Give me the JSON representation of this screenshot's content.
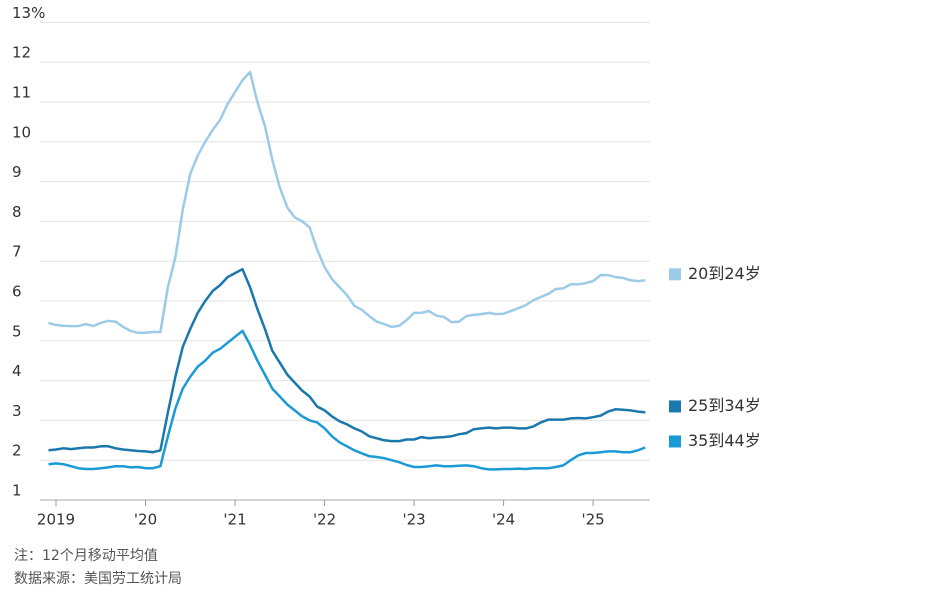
{
  "chart_data": {
    "type": "line",
    "note": "注：12个月移动平均值",
    "source": "数据来源：美国劳工统计局",
    "x": [
      "2018-12",
      "2019-01",
      "2019-02",
      "2019-03",
      "2019-04",
      "2019-05",
      "2019-06",
      "2019-07",
      "2019-08",
      "2019-09",
      "2019-10",
      "2019-11",
      "2019-12",
      "2020-01",
      "2020-02",
      "2020-03",
      "2020-04",
      "2020-05",
      "2020-06",
      "2020-07",
      "2020-08",
      "2020-09",
      "2020-10",
      "2020-11",
      "2020-12",
      "2021-01",
      "2021-02",
      "2021-03",
      "2021-04",
      "2021-05",
      "2021-06",
      "2021-07",
      "2021-08",
      "2021-09",
      "2021-10",
      "2021-11",
      "2021-12",
      "2022-01",
      "2022-02",
      "2022-03",
      "2022-04",
      "2022-05",
      "2022-06",
      "2022-07",
      "2022-08",
      "2022-09",
      "2022-10",
      "2022-11",
      "2022-12",
      "2023-01",
      "2023-02",
      "2023-03",
      "2023-04",
      "2023-05",
      "2023-06",
      "2023-07",
      "2023-08",
      "2023-09",
      "2023-10",
      "2023-11",
      "2023-12",
      "2024-01",
      "2024-02",
      "2024-03",
      "2024-04",
      "2024-05",
      "2024-06",
      "2024-07",
      "2024-08",
      "2024-09",
      "2024-10",
      "2024-11",
      "2024-12",
      "2025-01",
      "2025-02",
      "2025-03",
      "2025-04",
      "2025-05",
      "2025-06",
      "2025-07",
      "2025-08"
    ],
    "series": [
      {
        "name": "20到24岁",
        "color": "#9ccbe8",
        "values": [
          5.45,
          5.4,
          5.38,
          5.37,
          5.37,
          5.42,
          5.37,
          5.45,
          5.5,
          5.48,
          5.35,
          5.25,
          5.2,
          5.2,
          5.22,
          5.22,
          6.35,
          7.1,
          8.3,
          9.2,
          9.65,
          10.0,
          10.3,
          10.55,
          10.95,
          11.25,
          11.55,
          11.75,
          11.0,
          10.4,
          9.55,
          8.85,
          8.35,
          8.1,
          8.0,
          7.85,
          7.3,
          6.85,
          6.55,
          6.35,
          6.15,
          5.88,
          5.78,
          5.62,
          5.48,
          5.42,
          5.35,
          5.38,
          5.52,
          5.7,
          5.7,
          5.75,
          5.63,
          5.6,
          5.47,
          5.48,
          5.62,
          5.65,
          5.67,
          5.7,
          5.67,
          5.68,
          5.75,
          5.82,
          5.9,
          6.02,
          6.1,
          6.18,
          6.3,
          6.32,
          6.42,
          6.42,
          6.45,
          6.5,
          6.65,
          6.65,
          6.6,
          6.58,
          6.52,
          6.5,
          6.52
        ]
      },
      {
        "name": "25到34岁",
        "color": "#1a78ad",
        "values": [
          2.25,
          2.27,
          2.3,
          2.28,
          2.3,
          2.32,
          2.32,
          2.35,
          2.35,
          2.3,
          2.27,
          2.25,
          2.23,
          2.22,
          2.2,
          2.25,
          3.2,
          4.1,
          4.85,
          5.3,
          5.7,
          6.0,
          6.25,
          6.4,
          6.6,
          6.7,
          6.8,
          6.35,
          5.8,
          5.3,
          4.75,
          4.45,
          4.15,
          3.95,
          3.75,
          3.6,
          3.35,
          3.25,
          3.1,
          2.98,
          2.9,
          2.8,
          2.72,
          2.6,
          2.55,
          2.5,
          2.48,
          2.48,
          2.52,
          2.52,
          2.58,
          2.55,
          2.57,
          2.58,
          2.6,
          2.65,
          2.68,
          2.78,
          2.8,
          2.82,
          2.8,
          2.82,
          2.82,
          2.8,
          2.8,
          2.85,
          2.95,
          3.02,
          3.02,
          3.02,
          3.05,
          3.06,
          3.05,
          3.08,
          3.12,
          3.22,
          3.28,
          3.27,
          3.25,
          3.22,
          3.2
        ]
      },
      {
        "name": "35到44岁",
        "color": "#1a9ad6",
        "values": [
          1.9,
          1.92,
          1.9,
          1.85,
          1.8,
          1.78,
          1.78,
          1.8,
          1.82,
          1.85,
          1.85,
          1.82,
          1.83,
          1.8,
          1.8,
          1.85,
          2.6,
          3.3,
          3.8,
          4.1,
          4.35,
          4.5,
          4.7,
          4.8,
          4.95,
          5.1,
          5.25,
          4.9,
          4.5,
          4.15,
          3.8,
          3.6,
          3.4,
          3.25,
          3.1,
          3.0,
          2.95,
          2.8,
          2.6,
          2.45,
          2.35,
          2.25,
          2.17,
          2.1,
          2.08,
          2.05,
          2.0,
          1.95,
          1.88,
          1.83,
          1.83,
          1.85,
          1.87,
          1.85,
          1.85,
          1.86,
          1.87,
          1.85,
          1.8,
          1.77,
          1.77,
          1.78,
          1.78,
          1.79,
          1.78,
          1.8,
          1.8,
          1.8,
          1.83,
          1.87,
          2.0,
          2.12,
          2.18,
          2.18,
          2.2,
          2.22,
          2.22,
          2.2,
          2.2,
          2.25,
          2.32
        ]
      }
    ],
    "ylim": [
      1,
      13
    ],
    "yticks": [
      1,
      2,
      3,
      4,
      5,
      6,
      7,
      8,
      9,
      10,
      11,
      12,
      {
        "value": 13,
        "label": "13%"
      }
    ],
    "xticks": [
      {
        "value": "2019-01",
        "label": "2019"
      },
      {
        "value": "2020-01",
        "label": "'20"
      },
      {
        "value": "2021-01",
        "label": "'21"
      },
      {
        "value": "2022-01",
        "label": "'22"
      },
      {
        "value": "2023-01",
        "label": "'23"
      },
      {
        "value": "2024-01",
        "label": "'24"
      },
      {
        "value": "2025-01",
        "label": "'25"
      }
    ],
    "grid": true
  }
}
